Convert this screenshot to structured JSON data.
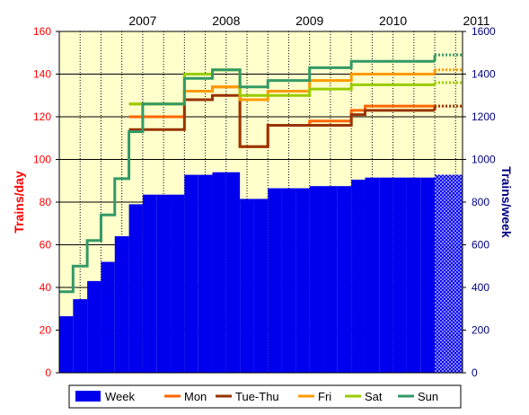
{
  "chart_data": {
    "type": "bar",
    "title": "",
    "x_tick_labels": [
      "2007",
      "2008",
      "2009",
      "2010",
      "2011"
    ],
    "y_left": {
      "label": "Trains/day",
      "range": [
        0,
        160
      ],
      "ticks": [
        "0",
        "20",
        "40",
        "60",
        "80",
        "100",
        "120",
        "140",
        "160"
      ]
    },
    "y_right": {
      "label": "Trains/week",
      "range": [
        0,
        1600
      ],
      "ticks": [
        "0",
        "200",
        "400",
        "600",
        "800",
        "1000",
        "1200",
        "1400",
        "1600"
      ]
    },
    "grid": true,
    "legend_position": "bottom",
    "x": [
      2006.58,
      2006.75,
      2006.92,
      2007.08,
      2007.25,
      2007.42,
      2007.58,
      2007.75,
      2007.92,
      2008.08,
      2008.25,
      2008.42,
      2008.58,
      2008.75,
      2008.92,
      2009.08,
      2009.25,
      2009.42,
      2009.58,
      2009.75,
      2009.92,
      2010.08,
      2010.25,
      2010.42,
      2010.58,
      2010.75,
      2010.92,
      2011.08,
      2011.25
    ],
    "series": [
      {
        "name": "Week",
        "axis": "right",
        "kind": "bar",
        "color": "#0000ee",
        "values": [
          265,
          345,
          430,
          520,
          640,
          790,
          835,
          835,
          835,
          928,
          928,
          940,
          940,
          815,
          815,
          865,
          865,
          865,
          875,
          875,
          875,
          905,
          915,
          915,
          915,
          915,
          915,
          928,
          928
        ],
        "forecast_from_index": 27
      },
      {
        "name": "Mon",
        "axis": "left",
        "kind": "step",
        "color": "#ff6600",
        "values": [
          null,
          null,
          null,
          null,
          null,
          120,
          120,
          120,
          120,
          132,
          132,
          134,
          134,
          106,
          106,
          116,
          116,
          116,
          118,
          118,
          118,
          123,
          125,
          125,
          125,
          125,
          125,
          125,
          125
        ],
        "forecast_from_index": 27
      },
      {
        "name": "Tue-Thu",
        "axis": "left",
        "kind": "step",
        "color": "#993300",
        "values": [
          null,
          null,
          null,
          null,
          null,
          114,
          114,
          114,
          114,
          128,
          128,
          130,
          130,
          106,
          106,
          116,
          116,
          116,
          116,
          116,
          116,
          121,
          123,
          123,
          123,
          123,
          123,
          125,
          125
        ],
        "forecast_from_index": 27
      },
      {
        "name": "Fri",
        "axis": "left",
        "kind": "step",
        "color": "#ff9900",
        "values": [
          null,
          null,
          null,
          null,
          null,
          126,
          126,
          126,
          126,
          132,
          132,
          134,
          134,
          128,
          128,
          132,
          132,
          132,
          137,
          137,
          137,
          140,
          140,
          140,
          140,
          140,
          140,
          142,
          142
        ],
        "forecast_from_index": 27
      },
      {
        "name": "Sat",
        "axis": "left",
        "kind": "step",
        "color": "#99cc00",
        "values": [
          null,
          null,
          null,
          null,
          null,
          126,
          126,
          126,
          126,
          140,
          140,
          142,
          142,
          130,
          130,
          130,
          130,
          130,
          133,
          133,
          133,
          135,
          135,
          135,
          135,
          135,
          135,
          136,
          136
        ],
        "forecast_from_index": 27
      },
      {
        "name": "Sun",
        "axis": "left",
        "kind": "step",
        "color": "#339966",
        "values": [
          38,
          50,
          62,
          74,
          91,
          113,
          126,
          126,
          126,
          138,
          138,
          142,
          142,
          134,
          134,
          137,
          137,
          137,
          143,
          143,
          143,
          146,
          146,
          146,
          146,
          146,
          146,
          149,
          149
        ],
        "forecast_from_index": 27
      }
    ]
  }
}
